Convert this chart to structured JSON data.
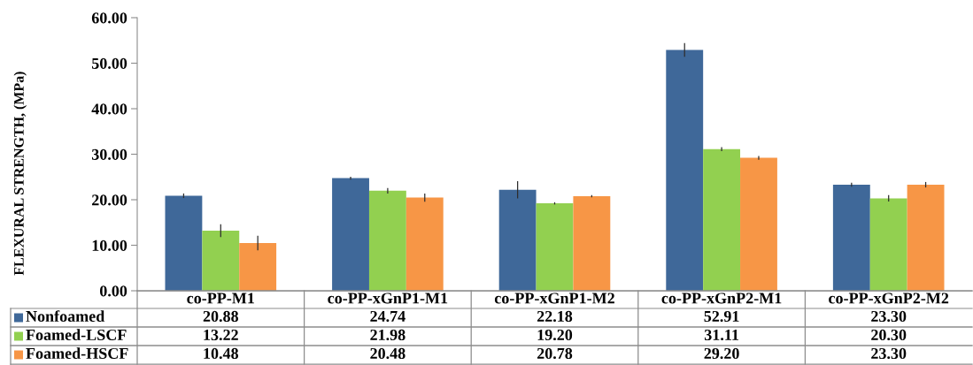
{
  "chart_data": {
    "type": "bar",
    "ylabel": "FLEXURAL STRENGTH, (MPa)",
    "categories": [
      "co-PP-M1",
      "co-PP-xGnP1-M1",
      "co-PP-xGnP1-M2",
      "co-PP-xGnP2-M1",
      "co-PP-xGnP2-M2"
    ],
    "series": [
      {
        "name": "Nonfoamed",
        "color": "#3f6899",
        "values": [
          20.88,
          24.74,
          22.18,
          52.91,
          23.3
        ],
        "errors": [
          0.5,
          0.3,
          1.9,
          1.5,
          0.45
        ],
        "value_labels": [
          "20.88",
          "24.74",
          "22.18",
          "52.91",
          "23.30"
        ]
      },
      {
        "name": "Foamed-LSCF",
        "color": "#92d050",
        "values": [
          13.22,
          21.98,
          19.2,
          31.11,
          20.3
        ],
        "errors": [
          1.4,
          0.6,
          0.25,
          0.45,
          0.7
        ],
        "value_labels": [
          "13.22",
          "21.98",
          "19.20",
          "31.11",
          "20.30"
        ]
      },
      {
        "name": "Foamed-HSCF",
        "color": "#f79646",
        "values": [
          10.48,
          20.48,
          20.78,
          29.2,
          23.3
        ],
        "errors": [
          1.6,
          0.9,
          0.25,
          0.4,
          0.6
        ],
        "value_labels": [
          "10.48",
          "20.48",
          "20.78",
          "29.20",
          "23.30"
        ]
      }
    ],
    "ylim": [
      0,
      60
    ],
    "yticks": [
      {
        "value": 0,
        "label": "0.00"
      },
      {
        "value": 10,
        "label": "10.00"
      },
      {
        "value": 20,
        "label": "20.00"
      },
      {
        "value": 30,
        "label": "30.00"
      },
      {
        "value": 40,
        "label": "40.00"
      },
      {
        "value": 50,
        "label": "50.00"
      },
      {
        "value": 60,
        "label": "60.00"
      }
    ],
    "legend": "bottom left"
  }
}
